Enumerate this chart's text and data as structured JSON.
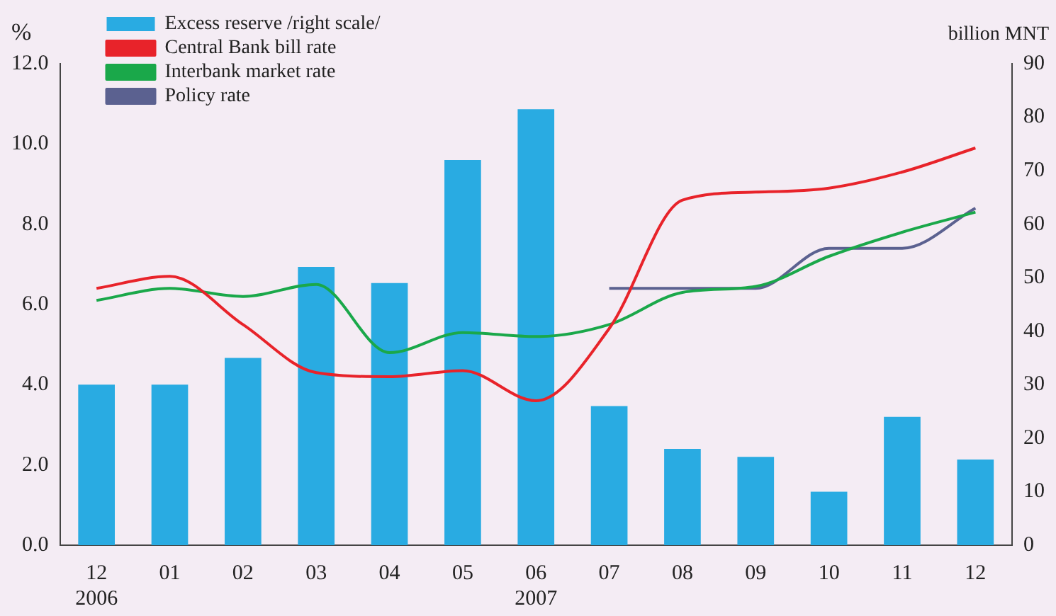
{
  "chart_data": {
    "type": "bar",
    "ylabel": "%",
    "y2label": "billion MNT",
    "categories": [
      "12\n2006",
      "01",
      "02",
      "03",
      "04",
      "05",
      "06\n2007",
      "07",
      "08",
      "09",
      "10",
      "11",
      "12"
    ],
    "series": [
      {
        "name": "Excess reserve /right scale/",
        "axis": "y2",
        "color": "#29abe2",
        "values": [
          30,
          30,
          35,
          52,
          49,
          72,
          81.5,
          26,
          18,
          16.5,
          10,
          24,
          16
        ]
      },
      {
        "name": "Central Bank bill rate",
        "type": "line",
        "color": "#e8232a",
        "values": [
          6.4,
          6.7,
          5.5,
          4.3,
          4.2,
          4.35,
          3.6,
          5.4,
          8.6,
          8.8,
          8.9,
          9.3,
          9.9
        ]
      },
      {
        "name": "Interbank market rate",
        "type": "line",
        "color": "#1aa84a",
        "values": [
          6.1,
          6.4,
          6.2,
          6.5,
          4.8,
          5.3,
          5.2,
          5.5,
          6.3,
          6.45,
          7.2,
          7.8,
          8.3
        ]
      },
      {
        "name": "Policy rate",
        "type": "line",
        "color": "#5b6190",
        "values": [
          null,
          null,
          null,
          null,
          null,
          null,
          null,
          6.4,
          6.4,
          6.4,
          7.4,
          7.4,
          8.4
        ]
      }
    ],
    "ylim": [
      0,
      12
    ],
    "yticks": [
      {
        "value": 0,
        "label": "0.0"
      },
      {
        "value": 2,
        "label": "2.0"
      },
      {
        "value": 4,
        "label": "4.0"
      },
      {
        "value": 6,
        "label": "6.0"
      },
      {
        "value": 8,
        "label": "8.0"
      },
      {
        "value": 10,
        "label": "10.0"
      },
      {
        "value": 12,
        "label": "12.0"
      }
    ],
    "y2lim": [
      0,
      90
    ],
    "y2ticks": [
      0,
      10,
      20,
      30,
      40,
      50,
      60,
      70,
      80,
      90
    ],
    "grid": false,
    "legend": "top left",
    "marker": "none",
    "line_style": "solid"
  }
}
